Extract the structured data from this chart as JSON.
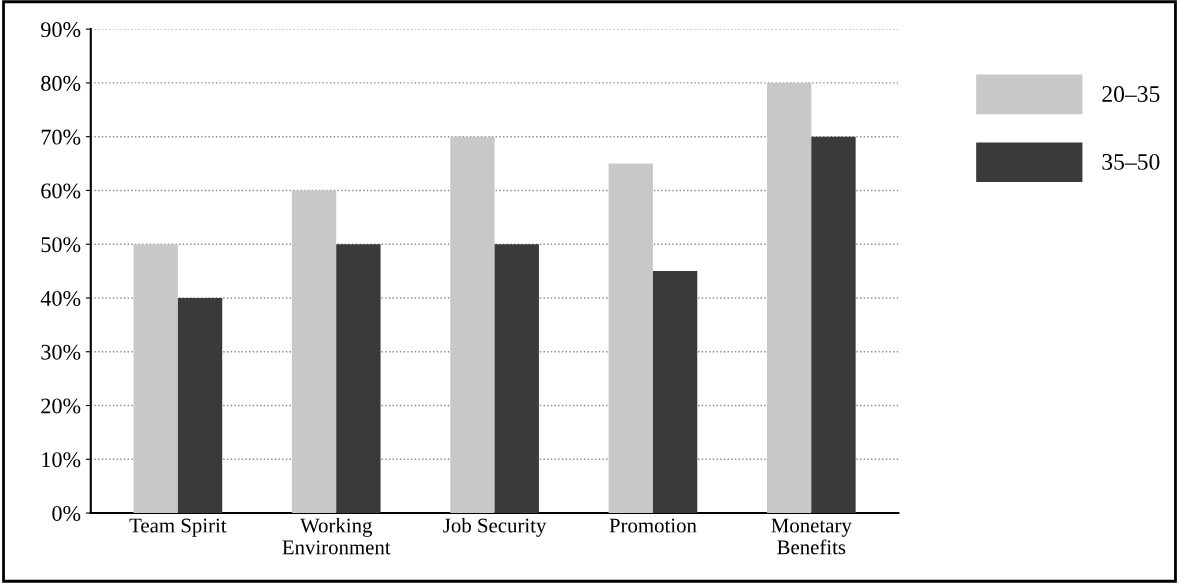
{
  "chart_data": {
    "type": "bar",
    "categories": [
      "Team Spirit",
      "Working\nEnvironment",
      "Job Security",
      "Promotion",
      "Monetary\nBenefits"
    ],
    "series": [
      {
        "name": "20–35",
        "color": "#c8c8c8",
        "values": [
          50,
          60,
          70,
          65,
          80
        ]
      },
      {
        "name": "35–50",
        "color": "#3a3a3a",
        "values": [
          40,
          50,
          50,
          45,
          70
        ]
      }
    ],
    "ylim": [
      0,
      90
    ],
    "yticks": [
      {
        "value": 0,
        "label": "0%"
      },
      {
        "value": 10,
        "label": "10%"
      },
      {
        "value": 20,
        "label": "20%"
      },
      {
        "value": 30,
        "label": "30%"
      },
      {
        "value": 40,
        "label": "40%"
      },
      {
        "value": 50,
        "label": "50%"
      },
      {
        "value": 60,
        "label": "60%"
      },
      {
        "value": 70,
        "label": "70%"
      },
      {
        "value": 80,
        "label": "80%"
      },
      {
        "value": 90,
        "label": "90%"
      }
    ],
    "grid": "y",
    "legend": "top right"
  }
}
